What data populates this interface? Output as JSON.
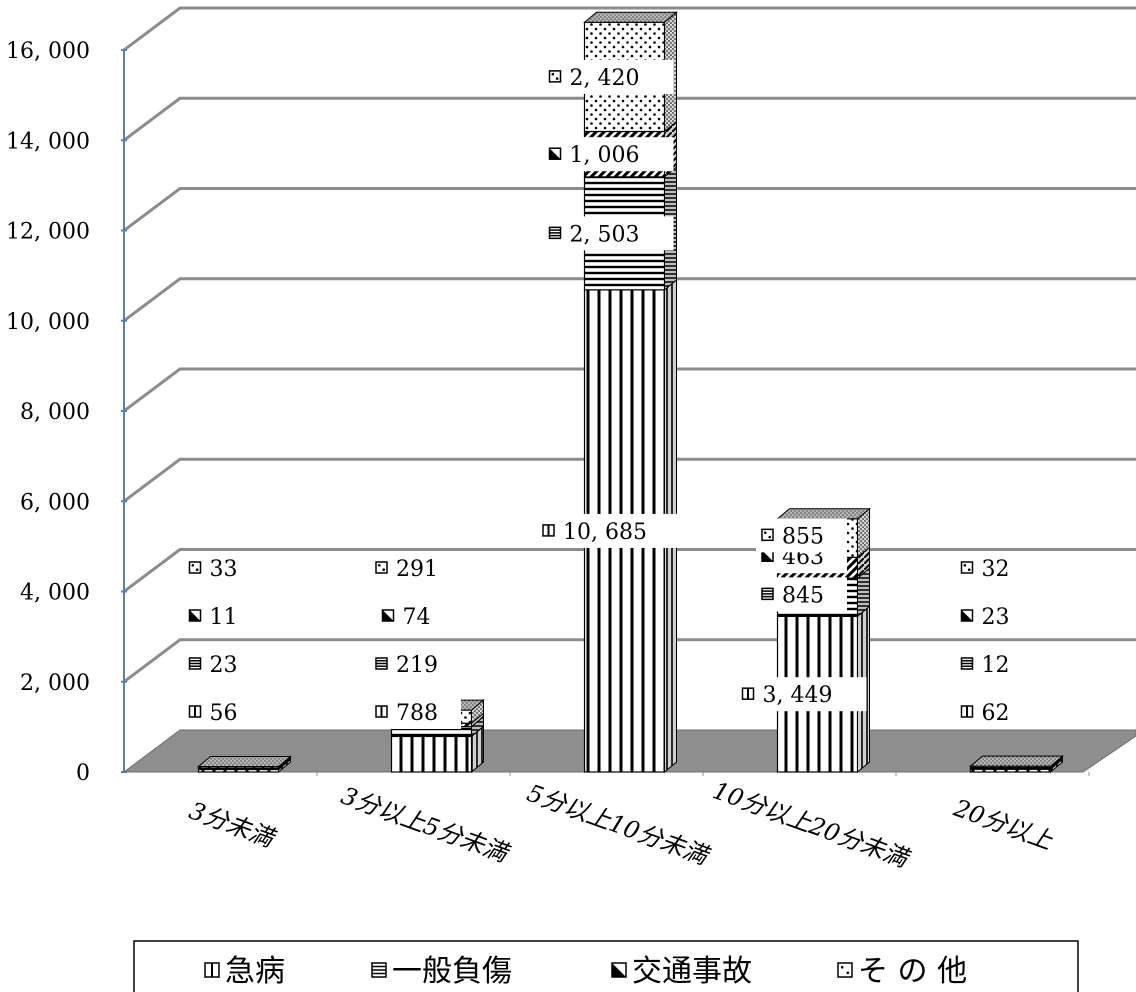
{
  "chart_data": {
    "type": "bar",
    "stacked": true,
    "three_d": true,
    "categories": [
      "3分未満",
      "3分以上5分未満",
      "5分以上10分未満",
      "10分以上20分未満",
      "20分以上"
    ],
    "series": [
      {
        "name": "急病",
        "values": [
          56,
          788,
          10685,
          3449,
          62
        ],
        "labels": [
          "56",
          "788",
          "10, 685",
          "3, 449",
          "62"
        ]
      },
      {
        "name": "一般負傷",
        "values": [
          23,
          219,
          2503,
          845,
          12
        ],
        "labels": [
          "23",
          "219",
          "2, 503",
          "845",
          "12"
        ]
      },
      {
        "name": "交通事故",
        "values": [
          11,
          74,
          1006,
          463,
          23
        ],
        "labels": [
          "11",
          "74",
          "1, 006",
          "463",
          "23"
        ]
      },
      {
        "name": "その他",
        "values": [
          33,
          291,
          2420,
          855,
          32
        ],
        "labels": [
          "33",
          "291",
          "2, 420",
          "855",
          "32"
        ]
      }
    ],
    "legend_names": [
      "急病",
      "一般負傷",
      "交通事故",
      "そ の 他"
    ],
    "yticks": [
      "0",
      "2, 000",
      "4, 000",
      "6, 000",
      "8, 000",
      "10, 000",
      "12, 000",
      "14, 000",
      "16, 000"
    ],
    "ylim": [
      0,
      16000
    ],
    "grid": true,
    "legend_position": "bottom"
  }
}
